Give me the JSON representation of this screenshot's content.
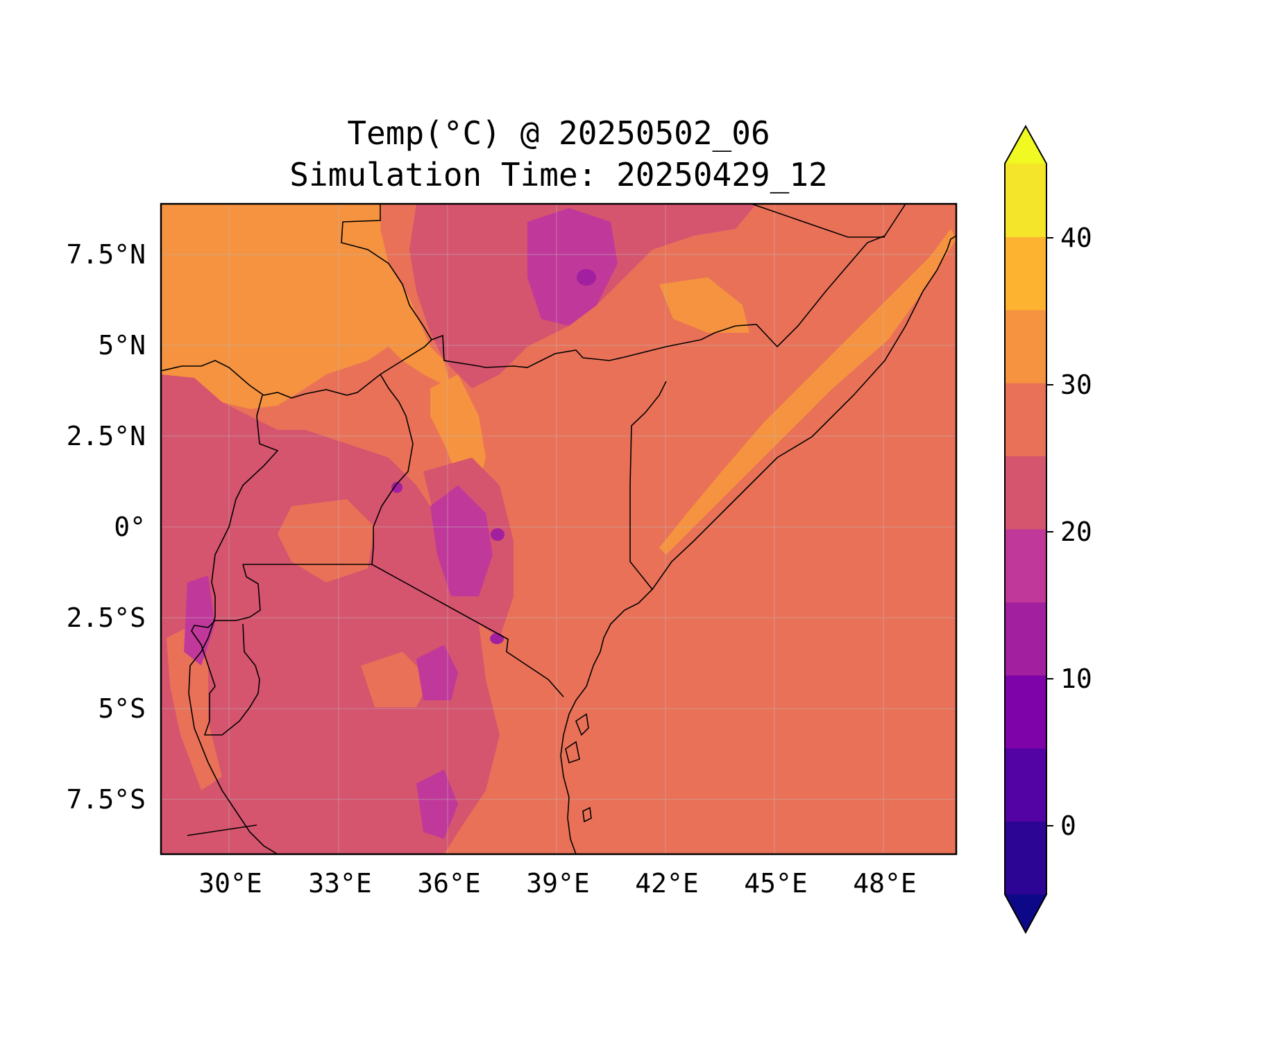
{
  "title": {
    "line1": "Temp(°C) @ 20250502_06",
    "line2": "Simulation Time: 20250429_12"
  },
  "map": {
    "lon_ticks": [
      "30°E",
      "33°E",
      "36°E",
      "39°E",
      "42°E",
      "45°E",
      "48°E"
    ],
    "lat_ticks": [
      "7.5°N",
      "5°N",
      "2.5°N",
      "0°",
      "2.5°S",
      "5°S",
      "7.5°S"
    ],
    "gridlines": true
  },
  "colorbar": {
    "ticks": [
      "40",
      "30",
      "20",
      "10",
      "0"
    ],
    "colors": [
      "#0d0887",
      "#2c0594",
      "#5302a3",
      "#7e03a8",
      "#a21fa0",
      "#c0399a",
      "#d5546e",
      "#e97158",
      "#f59340",
      "#fdb32f",
      "#f4e52b",
      "#f0f921"
    ],
    "extend": "both"
  }
}
